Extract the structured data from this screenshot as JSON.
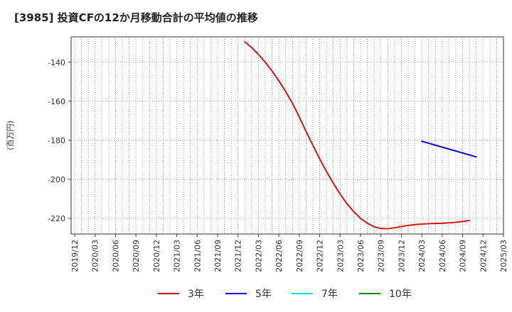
{
  "title": "[3985]  投資CFの12か月移動合計の平均値の推移",
  "chart_data": {
    "type": "line",
    "title": "[3985]  投資CFの12か月移動合計の平均値の推移",
    "ylabel": "(百万円)",
    "xlabel": "",
    "ylim": [
      -228,
      -127
    ],
    "yticks": [
      -140,
      -160,
      -180,
      -200,
      -220
    ],
    "x_tick_labels": [
      "2019/12",
      "2020/03",
      "2020/06",
      "2020/09",
      "2020/12",
      "2021/03",
      "2021/06",
      "2021/09",
      "2021/12",
      "2022/03",
      "2022/06",
      "2022/09",
      "2022/12",
      "2023/03",
      "2023/06",
      "2023/09",
      "2023/12",
      "2024/03",
      "2024/06",
      "2024/09",
      "2024/12",
      "2025/03"
    ],
    "grid": true,
    "legend_position": "bottom",
    "series": [
      {
        "name": "3年",
        "color": "#dd1111",
        "points": [
          [
            "2022/01",
            -129.5
          ],
          [
            "2022/02",
            -132.5
          ],
          [
            "2022/03",
            -136.0
          ],
          [
            "2022/04",
            -140.0
          ],
          [
            "2022/05",
            -144.5
          ],
          [
            "2022/06",
            -149.5
          ],
          [
            "2022/07",
            -155.0
          ],
          [
            "2022/08",
            -161.0
          ],
          [
            "2022/09",
            -168.0
          ],
          [
            "2022/10",
            -175.5
          ],
          [
            "2022/11",
            -182.5
          ],
          [
            "2022/12",
            -189.5
          ],
          [
            "2023/01",
            -196.0
          ],
          [
            "2023/02",
            -202.0
          ],
          [
            "2023/03",
            -207.5
          ],
          [
            "2023/04",
            -212.5
          ],
          [
            "2023/05",
            -216.5
          ],
          [
            "2023/06",
            -220.0
          ],
          [
            "2023/07",
            -222.5
          ],
          [
            "2023/08",
            -224.3
          ],
          [
            "2023/09",
            -225.2
          ],
          [
            "2023/10",
            -225.3
          ],
          [
            "2023/11",
            -224.8
          ],
          [
            "2023/12",
            -224.2
          ],
          [
            "2024/01",
            -223.6
          ],
          [
            "2024/02",
            -223.2
          ],
          [
            "2024/03",
            -222.9
          ],
          [
            "2024/04",
            -222.7
          ],
          [
            "2024/05",
            -222.6
          ],
          [
            "2024/06",
            -222.5
          ],
          [
            "2024/07",
            -222.3
          ],
          [
            "2024/08",
            -222.0
          ],
          [
            "2024/09",
            -221.6
          ],
          [
            "2024/10",
            -221.0
          ]
        ]
      },
      {
        "name": "5年",
        "color": "#0a0add",
        "points": [
          [
            "2024/03",
            -180.5
          ],
          [
            "2024/04",
            -181.5
          ],
          [
            "2024/05",
            -182.5
          ],
          [
            "2024/06",
            -183.5
          ],
          [
            "2024/07",
            -184.5
          ],
          [
            "2024/08",
            -185.5
          ],
          [
            "2024/09",
            -186.5
          ],
          [
            "2024/10",
            -187.5
          ],
          [
            "2024/11",
            -188.5
          ]
        ]
      },
      {
        "name": "7年",
        "color": "#11dddd",
        "points": []
      },
      {
        "name": "10年",
        "color": "#118811",
        "points": []
      }
    ]
  }
}
